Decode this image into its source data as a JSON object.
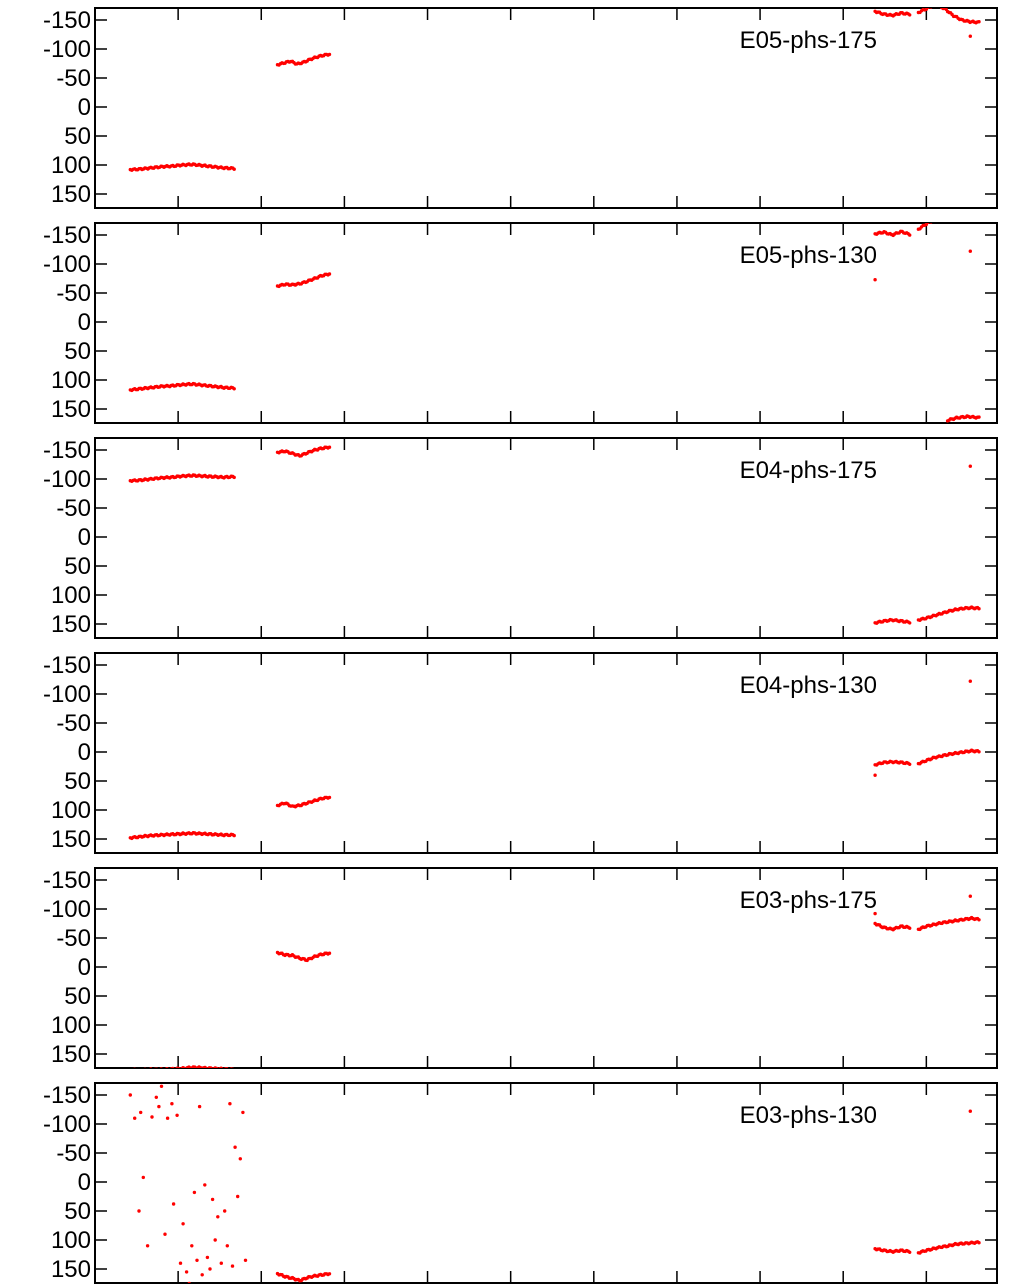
{
  "chart_data": [
    {
      "type": "scatter",
      "legend": "E05-phs-175",
      "legend_position": "top-right",
      "y_ticks": [
        "-150",
        "-100",
        "-50",
        "0",
        "50",
        "100",
        "150"
      ],
      "ylim": [
        -180,
        180
      ],
      "y_reversed": true,
      "xlim": [
        0,
        100
      ],
      "grid": false,
      "color": "#ff0000",
      "segments": [
        {
          "x0": 2,
          "x1": 14,
          "y": [
            108,
            107,
            105,
            103,
            102,
            100,
            99,
            101,
            103,
            105,
            106
          ]
        },
        {
          "x0": 19,
          "x1": 25,
          "y": [
            -73,
            -76,
            -79,
            -74,
            -77,
            -82,
            -86,
            -89,
            -91
          ]
        },
        {
          "x0": 88,
          "x1": 92,
          "y": [
            -165,
            -160,
            -158,
            -162,
            -160
          ]
        },
        {
          "x0": 93,
          "x1": 95,
          "y": [
            -163,
            -170,
            -178
          ]
        },
        {
          "x0": 95,
          "x1": 100,
          "y": [
            -176,
            -170,
            -158,
            -150,
            -147,
            -146
          ]
        }
      ],
      "points": [
        {
          "x": 99,
          "y": -122
        }
      ]
    },
    {
      "type": "scatter",
      "legend": "E05-phs-130",
      "legend_position": "top-right",
      "y_ticks": [
        "-150",
        "-100",
        "-50",
        "0",
        "50",
        "100",
        "150"
      ],
      "ylim": [
        -180,
        180
      ],
      "y_reversed": true,
      "xlim": [
        0,
        100
      ],
      "grid": false,
      "color": "#ff0000",
      "segments": [
        {
          "x0": 2,
          "x1": 14,
          "y": [
            117,
            115,
            113,
            111,
            110,
            108,
            107,
            109,
            111,
            113,
            114
          ]
        },
        {
          "x0": 19,
          "x1": 25,
          "y": [
            -62,
            -65,
            -64,
            -66,
            -70,
            -75,
            -80,
            -83
          ]
        },
        {
          "x0": 88,
          "x1": 92,
          "y": [
            -152,
            -155,
            -150,
            -156,
            -151
          ]
        },
        {
          "x0": 93,
          "x1": 95,
          "y": [
            -160,
            -170,
            -178
          ]
        },
        {
          "x0": 95,
          "x1": 100,
          "y": [
            -178,
            170,
            165,
            163,
            165
          ]
        }
      ],
      "points": [
        {
          "x": 88,
          "y": -73
        },
        {
          "x": 99,
          "y": -122
        }
      ]
    },
    {
      "type": "scatter",
      "legend": "E04-phs-175",
      "legend_position": "top-right",
      "y_ticks": [
        "-150",
        "-100",
        "-50",
        "0",
        "50",
        "100",
        "150"
      ],
      "ylim": [
        -180,
        180
      ],
      "y_reversed": true,
      "xlim": [
        0,
        100
      ],
      "grid": false,
      "color": "#ff0000",
      "segments": [
        {
          "x0": 2,
          "x1": 14,
          "y": [
            -97,
            -98,
            -100,
            -102,
            -103,
            -105,
            -106,
            -105,
            -104,
            -103,
            -104
          ]
        },
        {
          "x0": 19,
          "x1": 25,
          "y": [
            -146,
            -148,
            -144,
            -140,
            -145,
            -150,
            -153,
            -155
          ]
        },
        {
          "x0": 88,
          "x1": 92,
          "y": [
            148,
            145,
            143,
            145,
            147
          ]
        },
        {
          "x0": 93,
          "x1": 100,
          "y": [
            143,
            140,
            136,
            132,
            128,
            125,
            123,
            122,
            123
          ]
        }
      ],
      "points": [
        {
          "x": 99,
          "y": -122
        }
      ]
    },
    {
      "type": "scatter",
      "legend": "E04-phs-130",
      "legend_position": "top-right",
      "y_ticks": [
        "-150",
        "-100",
        "-50",
        "0",
        "50",
        "100",
        "150"
      ],
      "ylim": [
        -180,
        180
      ],
      "y_reversed": true,
      "xlim": [
        0,
        100
      ],
      "grid": false,
      "color": "#ff0000",
      "segments": [
        {
          "x0": 2,
          "x1": 14,
          "y": [
            148,
            146,
            144,
            143,
            142,
            141,
            140,
            141,
            142,
            143,
            143
          ]
        },
        {
          "x0": 19,
          "x1": 25,
          "y": [
            92,
            88,
            94,
            92,
            88,
            84,
            80,
            78
          ]
        },
        {
          "x0": 88,
          "x1": 92,
          "y": [
            22,
            18,
            17,
            18,
            20
          ]
        },
        {
          "x0": 93,
          "x1": 100,
          "y": [
            20,
            15,
            10,
            7,
            4,
            2,
            0,
            -2,
            -1
          ]
        }
      ],
      "points": [
        {
          "x": 88,
          "y": 40
        },
        {
          "x": 99,
          "y": -122
        }
      ]
    },
    {
      "type": "scatter",
      "legend": "E03-phs-175",
      "legend_position": "top-right",
      "y_ticks": [
        "-150",
        "-100",
        "-50",
        "0",
        "50",
        "100",
        "150"
      ],
      "ylim": [
        -180,
        180
      ],
      "y_reversed": true,
      "xlim": [
        0,
        100
      ],
      "grid": false,
      "color": "#ff0000",
      "segments": [
        {
          "x0": 2,
          "x1": 14,
          "y": [
            177,
            178,
            177,
            177,
            176,
            175,
            173,
            174,
            175,
            176,
            177
          ]
        },
        {
          "x0": 19,
          "x1": 25,
          "y": [
            -25,
            -21,
            -20,
            -15,
            -12,
            -18,
            -22,
            -24
          ]
        },
        {
          "x0": 88,
          "x1": 92,
          "y": [
            -75,
            -68,
            -65,
            -70,
            -68
          ]
        },
        {
          "x0": 93,
          "x1": 100,
          "y": [
            -65,
            -70,
            -73,
            -76,
            -78,
            -80,
            -82,
            -84,
            -82
          ]
        }
      ],
      "points": [
        {
          "x": 88,
          "y": -92
        },
        {
          "x": 99,
          "y": -122
        }
      ]
    },
    {
      "type": "scatter",
      "legend": "E03-phs-130",
      "legend_position": "top-right",
      "y_ticks": [
        "-150",
        "-100",
        "-50",
        "0",
        "50",
        "100",
        "150"
      ],
      "ylim": [
        -180,
        180
      ],
      "y_reversed": true,
      "xlim": [
        0,
        100
      ],
      "grid": false,
      "color": "#ff0000",
      "segments": [
        {
          "x0": 19,
          "x1": 25,
          "y": [
            158,
            163,
            166,
            170,
            165,
            162,
            160,
            158
          ]
        },
        {
          "x0": 88,
          "x1": 92,
          "y": [
            115,
            118,
            120,
            118,
            120
          ]
        },
        {
          "x0": 93,
          "x1": 100,
          "y": [
            122,
            118,
            115,
            112,
            110,
            107,
            106,
            105,
            104
          ]
        }
      ],
      "points": [
        {
          "x": 2,
          "y": -150
        },
        {
          "x": 2.5,
          "y": -110
        },
        {
          "x": 3,
          "y": 50
        },
        {
          "x": 3.2,
          "y": -120
        },
        {
          "x": 3.5,
          "y": -8
        },
        {
          "x": 4,
          "y": 110
        },
        {
          "x": 4.5,
          "y": -112
        },
        {
          "x": 5,
          "y": -146
        },
        {
          "x": 5.3,
          "y": -130
        },
        {
          "x": 5.6,
          "y": -165
        },
        {
          "x": 6,
          "y": 90
        },
        {
          "x": 6.3,
          "y": -110
        },
        {
          "x": 6.8,
          "y": -135
        },
        {
          "x": 7,
          "y": 38
        },
        {
          "x": 7.4,
          "y": -115
        },
        {
          "x": 7.8,
          "y": 140
        },
        {
          "x": 8.1,
          "y": 72
        },
        {
          "x": 8.5,
          "y": 155
        },
        {
          "x": 8.8,
          "y": 175
        },
        {
          "x": 9.1,
          "y": 110
        },
        {
          "x": 9.4,
          "y": 18
        },
        {
          "x": 9.7,
          "y": 135
        },
        {
          "x": 10,
          "y": -130
        },
        {
          "x": 10.3,
          "y": 160
        },
        {
          "x": 10.6,
          "y": 5
        },
        {
          "x": 10.9,
          "y": 130
        },
        {
          "x": 11.2,
          "y": 150
        },
        {
          "x": 11.5,
          "y": 30
        },
        {
          "x": 11.8,
          "y": 100
        },
        {
          "x": 12.1,
          "y": 60
        },
        {
          "x": 12.5,
          "y": 140
        },
        {
          "x": 12.9,
          "y": 50
        },
        {
          "x": 13.2,
          "y": 110
        },
        {
          "x": 13.5,
          "y": -135
        },
        {
          "x": 13.8,
          "y": 145
        },
        {
          "x": 14.1,
          "y": -60
        },
        {
          "x": 14.4,
          "y": 25
        },
        {
          "x": 14.7,
          "y": -40
        },
        {
          "x": 15,
          "y": -120
        },
        {
          "x": 15.3,
          "y": 135
        },
        {
          "x": 99,
          "y": -122
        }
      ]
    }
  ]
}
